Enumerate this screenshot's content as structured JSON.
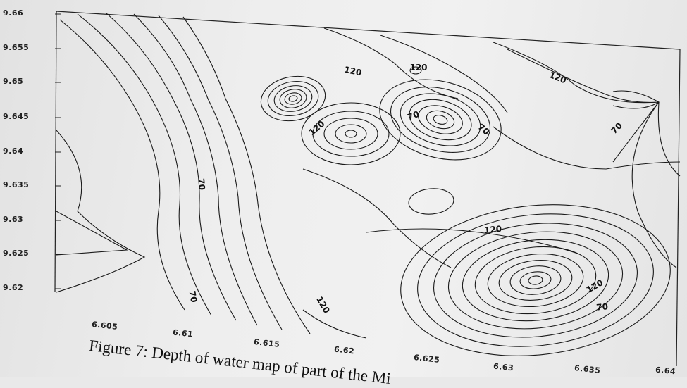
{
  "chart_data": {
    "type": "contour",
    "title": "",
    "xlabel": "",
    "ylabel": "",
    "x_ticks": [
      "6.605",
      "6.61",
      "6.615",
      "6.62",
      "6.625",
      "6.63",
      "6.635",
      "6.64"
    ],
    "y_ticks": [
      "9.66",
      "9.655",
      "9.65",
      "9.645",
      "9.64",
      "9.635",
      "9.63",
      "9.625",
      "9.62"
    ],
    "xlim": [
      6.6,
      6.64
    ],
    "ylim": [
      9.615,
      9.66
    ],
    "contour_labels": [
      "120",
      "120",
      "120",
      "70",
      "70",
      "70",
      "120",
      "120",
      "70",
      "70",
      "120",
      "120",
      "70"
    ],
    "grid": false
  },
  "caption": "Figure 7: Depth of water map of part of the Mi"
}
